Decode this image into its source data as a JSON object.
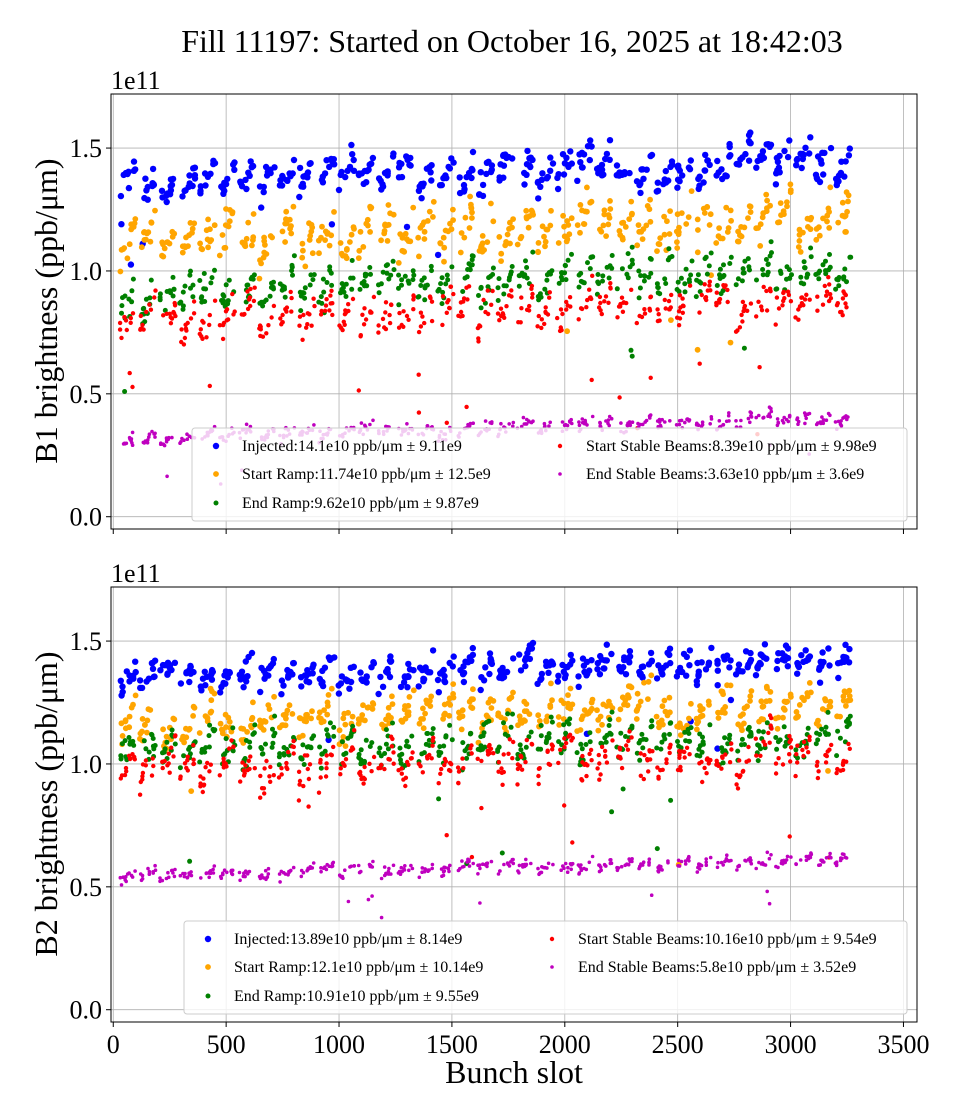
{
  "figure": {
    "title": "Fill 11197: Started on October 16, 2025 at 18:42:03"
  },
  "chart_data": [
    {
      "type": "scatter",
      "panel": "top",
      "ylabel": "B1 brightness (ppb/μm)",
      "y_multiplier": "1e11",
      "xlim": [
        -10,
        3560
      ],
      "ylim": [
        -0.05,
        1.72
      ],
      "xticks": [
        0,
        500,
        1000,
        1500,
        2000,
        2500,
        3000,
        3500
      ],
      "yticks": [
        0.0,
        0.5,
        1.0,
        1.5
      ],
      "ytick_labels": [
        "0.0",
        "0.5",
        "1.0",
        "1.5"
      ],
      "legend_position": "lower-right",
      "series": [
        {
          "name": "Injected",
          "label": "Injected:14.1e10 ppb/μm ± 9.11e9",
          "color": "#0000ff",
          "mean": 1.41,
          "spread": 0.0911,
          "marker_size": 3.2
        },
        {
          "name": "Start Ramp",
          "label": "Start Ramp:11.74e10 ppb/μm ± 12.5e9",
          "color": "#ffa500",
          "mean": 1.174,
          "spread": 0.125,
          "marker_size": 2.9
        },
        {
          "name": "End Ramp",
          "label": "End Ramp:9.62e10 ppb/μm ± 9.87e9",
          "color": "#008000",
          "mean": 0.962,
          "spread": 0.0987,
          "marker_size": 2.5
        },
        {
          "name": "Start Stable Beams",
          "label": "Start Stable Beams:8.39e10 ppb/μm ± 9.98e9",
          "color": "#ff0000",
          "mean": 0.839,
          "spread": 0.0998,
          "marker_size": 2.2
        },
        {
          "name": "End Stable Beams",
          "label": "End Stable Beams:3.63e10 ppb/μm ± 3.6e9",
          "color": "#bf00bf",
          "mean": 0.363,
          "spread": 0.036,
          "marker_size": 1.8
        }
      ]
    },
    {
      "type": "scatter",
      "panel": "bottom",
      "xlabel": "Bunch slot",
      "ylabel": "B2 brightness (ppb/μm)",
      "y_multiplier": "1e11",
      "xlim": [
        -10,
        3560
      ],
      "ylim": [
        -0.05,
        1.72
      ],
      "xticks": [
        0,
        500,
        1000,
        1500,
        2000,
        2500,
        3000,
        3500
      ],
      "xtick_labels": [
        "0",
        "500",
        "1000",
        "1500",
        "2000",
        "2500",
        "3000",
        "3500"
      ],
      "yticks": [
        0.0,
        0.5,
        1.0,
        1.5
      ],
      "ytick_labels": [
        "0.0",
        "0.5",
        "1.0",
        "1.5"
      ],
      "legend_position": "lower-right",
      "series": [
        {
          "name": "Injected",
          "label": "Injected:13.89e10 ppb/μm ± 8.14e9",
          "color": "#0000ff",
          "mean": 1.389,
          "spread": 0.0814,
          "marker_size": 3.2
        },
        {
          "name": "Start Ramp",
          "label": "Start Ramp:12.1e10 ppb/μm ± 10.14e9",
          "color": "#ffa500",
          "mean": 1.21,
          "spread": 0.1014,
          "marker_size": 2.9
        },
        {
          "name": "End Ramp",
          "label": "End Ramp:10.91e10 ppb/μm ± 9.55e9",
          "color": "#008000",
          "mean": 1.091,
          "spread": 0.0955,
          "marker_size": 2.5
        },
        {
          "name": "Start Stable Beams",
          "label": "Start Stable Beams:10.16e10 ppb/μm ± 9.54e9",
          "color": "#ff0000",
          "mean": 1.016,
          "spread": 0.0954,
          "marker_size": 2.2
        },
        {
          "name": "End Stable Beams",
          "label": "End Stable Beams:5.8e10 ppb/μm ± 3.52e9",
          "color": "#bf00bf",
          "mean": 0.58,
          "spread": 0.0352,
          "marker_size": 1.8
        }
      ]
    }
  ]
}
